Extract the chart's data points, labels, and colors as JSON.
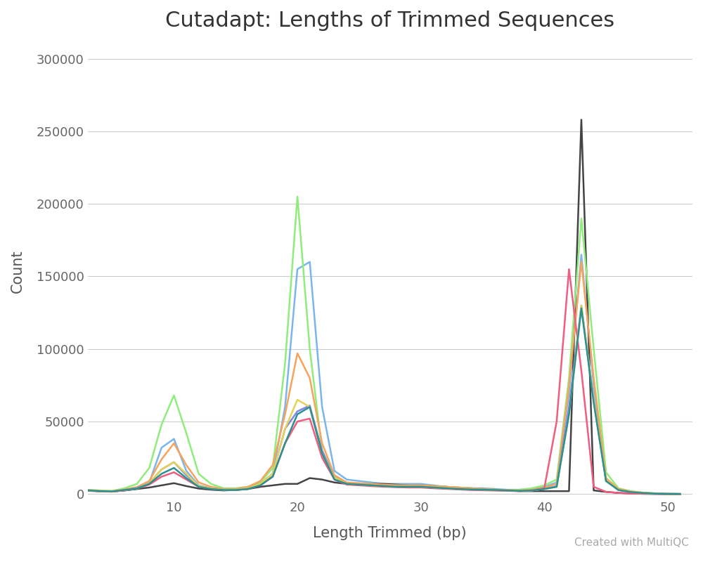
{
  "title": "Cutadapt: Lengths of Trimmed Sequences",
  "xlabel": "Length Trimmed (bp)",
  "ylabel": "Count",
  "watermark": "Created with MultiQC",
  "xlim": [
    3,
    52
  ],
  "ylim": [
    -3000,
    310000
  ],
  "yticks": [
    0,
    50000,
    100000,
    150000,
    200000,
    250000,
    300000
  ],
  "ytick_labels": [
    "0",
    "50000",
    "100000",
    "150000",
    "200000",
    "250000",
    "300000"
  ],
  "xticks": [
    10,
    20,
    30,
    40,
    50
  ],
  "background_color": "#ffffff",
  "grid_color": "#cccccc",
  "series": [
    {
      "color": "#7cb5ec",
      "lw": 1.8,
      "data": {
        "3": 2500,
        "4": 2000,
        "5": 1800,
        "6": 2500,
        "7": 3500,
        "8": 8000,
        "9": 32000,
        "10": 38000,
        "11": 16000,
        "12": 6000,
        "13": 4000,
        "14": 3000,
        "15": 3000,
        "16": 4000,
        "17": 7000,
        "18": 14000,
        "19": 60000,
        "20": 155000,
        "21": 160000,
        "22": 60000,
        "23": 16000,
        "24": 10000,
        "25": 9000,
        "26": 8000,
        "27": 7000,
        "28": 7000,
        "29": 7000,
        "30": 7000,
        "31": 6000,
        "32": 5000,
        "33": 4000,
        "34": 4000,
        "35": 4000,
        "36": 3500,
        "37": 3000,
        "38": 3000,
        "39": 3500,
        "40": 5000,
        "41": 8000,
        "42": 70000,
        "43": 165000,
        "44": 75000,
        "45": 10000,
        "46": 3000,
        "47": 1500,
        "48": 1000,
        "49": 500,
        "50": 200,
        "51": 100
      }
    },
    {
      "color": "#434348",
      "lw": 1.8,
      "data": {
        "3": 2500,
        "4": 2000,
        "5": 1800,
        "6": 2500,
        "7": 3500,
        "8": 4500,
        "9": 6000,
        "10": 7500,
        "11": 5500,
        "12": 3800,
        "13": 3000,
        "14": 2500,
        "15": 2800,
        "16": 3500,
        "17": 5000,
        "18": 6000,
        "19": 7000,
        "20": 7000,
        "21": 11000,
        "22": 10000,
        "23": 8000,
        "24": 7000,
        "25": 7000,
        "26": 7000,
        "27": 7000,
        "28": 6500,
        "29": 6000,
        "30": 6000,
        "31": 5500,
        "32": 5000,
        "33": 4500,
        "34": 4000,
        "35": 3500,
        "36": 3000,
        "37": 2500,
        "38": 2000,
        "39": 2000,
        "40": 2000,
        "41": 2000,
        "42": 2000,
        "43": 258000,
        "44": 2500,
        "45": 1500,
        "46": 800,
        "47": 400,
        "48": 200,
        "49": 100,
        "50": 50,
        "51": 20
      }
    },
    {
      "color": "#90ed7d",
      "lw": 1.8,
      "data": {
        "3": 3000,
        "4": 2500,
        "5": 2200,
        "6": 4000,
        "7": 7000,
        "8": 18000,
        "9": 48000,
        "10": 68000,
        "11": 42000,
        "12": 14000,
        "13": 7000,
        "14": 4000,
        "15": 4000,
        "16": 5000,
        "17": 8000,
        "18": 18000,
        "19": 90000,
        "20": 205000,
        "21": 100000,
        "22": 30000,
        "23": 12000,
        "24": 8000,
        "25": 7000,
        "26": 7000,
        "27": 6000,
        "28": 6000,
        "29": 6000,
        "30": 6000,
        "31": 5500,
        "32": 5000,
        "33": 4500,
        "34": 4000,
        "35": 3500,
        "36": 3000,
        "37": 2800,
        "38": 3000,
        "39": 4000,
        "40": 6000,
        "41": 10000,
        "42": 80000,
        "43": 190000,
        "44": 100000,
        "45": 15000,
        "46": 4000,
        "47": 2000,
        "48": 1000,
        "49": 500,
        "50": 200,
        "51": 80
      }
    },
    {
      "color": "#f7a35c",
      "lw": 1.8,
      "data": {
        "3": 2800,
        "4": 2200,
        "5": 2000,
        "6": 3200,
        "7": 4800,
        "8": 9000,
        "9": 24000,
        "10": 35000,
        "11": 20000,
        "12": 8000,
        "13": 5000,
        "14": 3500,
        "15": 3500,
        "16": 5000,
        "17": 9000,
        "18": 20000,
        "19": 55000,
        "20": 97000,
        "21": 80000,
        "22": 35000,
        "23": 13000,
        "24": 8000,
        "25": 7500,
        "26": 7000,
        "27": 6500,
        "28": 6000,
        "29": 6000,
        "30": 6000,
        "31": 5500,
        "32": 5000,
        "33": 4500,
        "34": 4000,
        "35": 3500,
        "36": 3000,
        "37": 2800,
        "38": 2500,
        "39": 3000,
        "40": 4500,
        "41": 7000,
        "42": 75000,
        "43": 160000,
        "44": 80000,
        "45": 11000,
        "46": 3500,
        "47": 1800,
        "48": 900,
        "49": 400,
        "50": 150,
        "51": 60
      }
    },
    {
      "color": "#8085e9",
      "lw": 1.8,
      "data": {
        "3": 2500,
        "4": 2000,
        "5": 1800,
        "6": 2800,
        "7": 4200,
        "8": 7500,
        "9": 17000,
        "10": 22000,
        "11": 13000,
        "12": 5500,
        "13": 4000,
        "14": 3000,
        "15": 3000,
        "16": 4000,
        "17": 7000,
        "18": 14000,
        "19": 45000,
        "20": 57000,
        "21": 61000,
        "22": 30000,
        "23": 11000,
        "24": 7000,
        "25": 6500,
        "26": 6000,
        "27": 5500,
        "28": 5000,
        "29": 5000,
        "30": 5000,
        "31": 4500,
        "32": 4000,
        "33": 3500,
        "34": 3200,
        "35": 3000,
        "36": 2800,
        "37": 2500,
        "38": 2200,
        "39": 2500,
        "40": 3500,
        "41": 5500,
        "42": 60000,
        "43": 130000,
        "44": 65000,
        "45": 9000,
        "46": 2800,
        "47": 1400,
        "48": 700,
        "49": 300,
        "50": 100,
        "51": 40
      }
    },
    {
      "color": "#f15c80",
      "lw": 1.8,
      "data": {
        "3": 2300,
        "4": 1800,
        "5": 1600,
        "6": 2500,
        "7": 3800,
        "8": 6500,
        "9": 12000,
        "10": 15000,
        "11": 10000,
        "12": 5000,
        "13": 3500,
        "14": 2800,
        "15": 2800,
        "16": 3500,
        "17": 6000,
        "18": 12000,
        "19": 35000,
        "20": 50000,
        "21": 52000,
        "22": 25000,
        "23": 10000,
        "24": 6500,
        "25": 6000,
        "26": 5500,
        "27": 5000,
        "28": 4800,
        "29": 4500,
        "30": 4500,
        "31": 4000,
        "32": 3600,
        "33": 3200,
        "34": 2800,
        "35": 2600,
        "36": 2400,
        "37": 2200,
        "38": 2000,
        "39": 2500,
        "40": 4000,
        "41": 50000,
        "42": 155000,
        "43": 85000,
        "44": 5000,
        "45": 1500,
        "46": 800,
        "47": 400,
        "48": 200,
        "49": 100,
        "50": 50,
        "51": 20
      }
    },
    {
      "color": "#e4d354",
      "lw": 1.8,
      "data": {
        "3": 2500,
        "4": 2000,
        "5": 1800,
        "6": 2800,
        "7": 3800,
        "8": 7500,
        "9": 17000,
        "10": 22000,
        "11": 14000,
        "12": 5500,
        "13": 4000,
        "14": 3000,
        "15": 3000,
        "16": 4000,
        "17": 7000,
        "18": 14000,
        "19": 45000,
        "20": 65000,
        "21": 60000,
        "22": 28000,
        "23": 11000,
        "24": 7000,
        "25": 6500,
        "26": 6000,
        "27": 5500,
        "28": 5000,
        "29": 5000,
        "30": 5000,
        "31": 4500,
        "32": 4000,
        "33": 3500,
        "34": 3200,
        "35": 3000,
        "36": 2800,
        "37": 2500,
        "38": 2200,
        "39": 2500,
        "40": 3500,
        "41": 5000,
        "42": 55000,
        "43": 130000,
        "44": 65000,
        "45": 9500,
        "46": 3000,
        "47": 1500,
        "48": 700,
        "49": 300,
        "50": 100,
        "51": 40
      }
    },
    {
      "color": "#2b908f",
      "lw": 1.8,
      "data": {
        "3": 2500,
        "4": 2000,
        "5": 1800,
        "6": 2800,
        "7": 3800,
        "8": 7000,
        "9": 14000,
        "10": 18000,
        "11": 11000,
        "12": 5000,
        "13": 3500,
        "14": 2800,
        "15": 2800,
        "16": 3500,
        "17": 6000,
        "18": 12000,
        "19": 35000,
        "20": 55000,
        "21": 60000,
        "22": 28000,
        "23": 10000,
        "24": 7000,
        "25": 6500,
        "26": 6000,
        "27": 5500,
        "28": 5000,
        "29": 5000,
        "30": 5000,
        "31": 4500,
        "32": 4000,
        "33": 3500,
        "34": 3200,
        "35": 3000,
        "36": 2800,
        "37": 2500,
        "38": 2200,
        "39": 2500,
        "40": 3500,
        "41": 5000,
        "42": 55000,
        "43": 128000,
        "44": 63000,
        "45": 9000,
        "46": 2800,
        "47": 1400,
        "48": 700,
        "49": 300,
        "50": 100,
        "51": 40
      }
    }
  ]
}
